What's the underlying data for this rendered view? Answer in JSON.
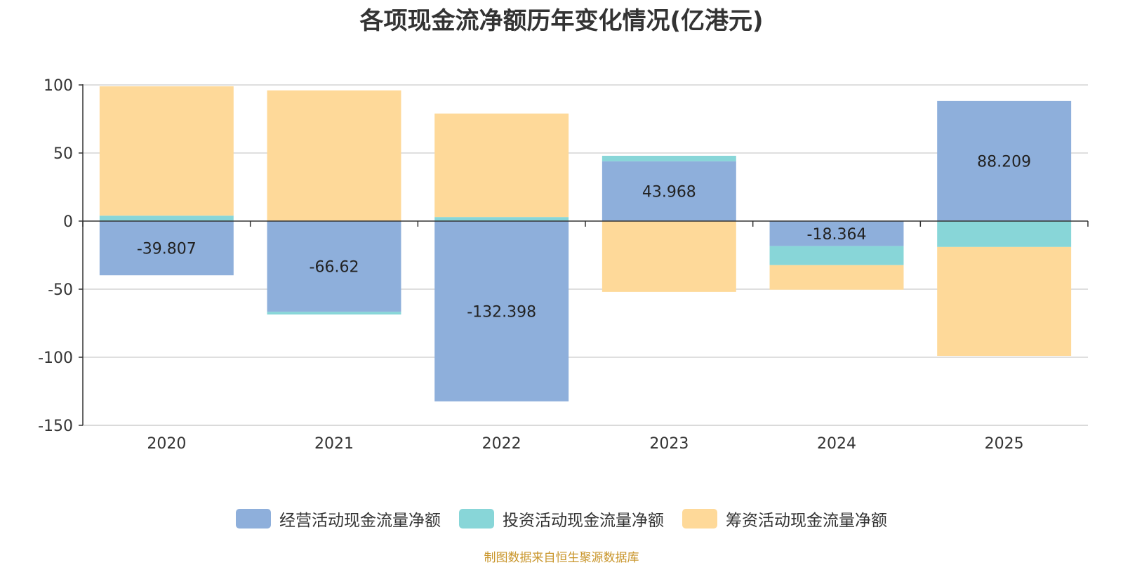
{
  "chart_data": {
    "type": "bar",
    "stacked": true,
    "title": "各项现金流净额历年变化情况(亿港元)",
    "categories": [
      "2020",
      "2021",
      "2022",
      "2023",
      "2024",
      "2025"
    ],
    "series": [
      {
        "name": "经营活动现金流量净额",
        "color": "#8eafdb",
        "values": [
          -39.807,
          -66.62,
          -132.398,
          43.968,
          -18.364,
          88.209
        ],
        "labels": [
          "-39.807",
          "-66.62",
          "-132.398",
          "43.968",
          "-18.364",
          "88.209"
        ]
      },
      {
        "name": "投资活动现金流量净额",
        "color": "#88d6d8",
        "values": [
          4,
          -2,
          3,
          4,
          -14,
          -19
        ]
      },
      {
        "name": "筹资活动现金流量净额",
        "color": "#fed999",
        "values": [
          95,
          96,
          76,
          -52,
          -18,
          -80
        ]
      }
    ],
    "ylim": [
      -150,
      100
    ],
    "yticks": [
      "100",
      "50",
      "0",
      "-50",
      "-100",
      "-150"
    ],
    "ytick_values": [
      100,
      50,
      0,
      -50,
      -100,
      -150
    ],
    "grid": true,
    "legend_position": "bottom"
  },
  "source_note": "制图数据来自恒生聚源数据库"
}
